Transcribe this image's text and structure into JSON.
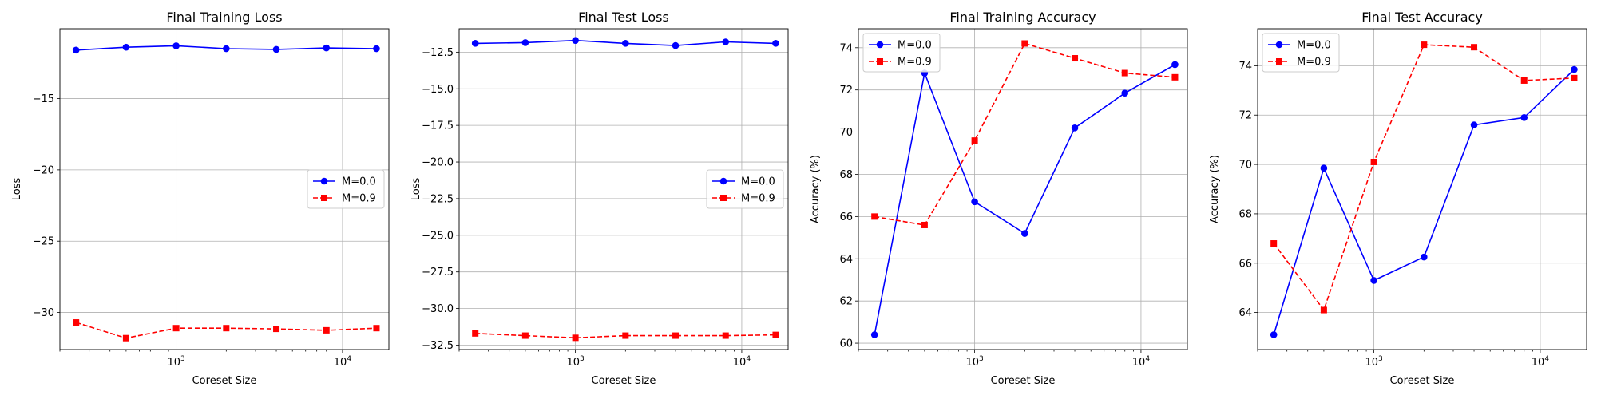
{
  "chart_data": [
    {
      "type": "line",
      "title": "Final Training Loss",
      "xlabel": "Coreset Size",
      "ylabel": "Loss",
      "xscale": "log",
      "xlim": [
        200,
        19000
      ],
      "ylim": [
        -32.6,
        -10.1
      ],
      "xticks": [
        1000,
        10000
      ],
      "yticks": [
        -15,
        -20,
        -25,
        -30
      ],
      "ytick_labels": [
        "−15",
        "−20",
        "−25",
        "−30"
      ],
      "grid": true,
      "legend_position": "center-right",
      "x": [
        250,
        500,
        1000,
        2000,
        4000,
        8000,
        16000
      ],
      "series": [
        {
          "name": "M=0.0",
          "color": "#0000ff",
          "marker": "circle",
          "linestyle": "solid",
          "values": [
            -11.6,
            -11.4,
            -11.3,
            -11.5,
            -11.55,
            -11.45,
            -11.5
          ]
        },
        {
          "name": "M=0.9",
          "color": "#ff0000",
          "marker": "square",
          "linestyle": "dashed",
          "values": [
            -30.7,
            -31.8,
            -31.1,
            -31.1,
            -31.15,
            -31.25,
            -31.1
          ]
        }
      ]
    },
    {
      "type": "line",
      "title": "Final Test Loss",
      "xlabel": "Coreset Size",
      "ylabel": "Loss",
      "xscale": "log",
      "xlim": [
        200,
        19000
      ],
      "ylim": [
        -32.8,
        -10.9
      ],
      "xticks": [
        1000,
        10000
      ],
      "yticks": [
        -12.5,
        -15.0,
        -17.5,
        -20.0,
        -22.5,
        -25.0,
        -27.5,
        -30.0,
        -32.5
      ],
      "ytick_labels": [
        "−12.5",
        "−15.0",
        "−17.5",
        "−20.0",
        "−22.5",
        "−25.0",
        "−27.5",
        "−30.0",
        "−32.5"
      ],
      "grid": true,
      "legend_position": "center-right",
      "x": [
        250,
        500,
        1000,
        2000,
        4000,
        8000,
        16000
      ],
      "series": [
        {
          "name": "M=0.0",
          "color": "#0000ff",
          "marker": "circle",
          "linestyle": "solid",
          "values": [
            -11.9,
            -11.85,
            -11.7,
            -11.9,
            -12.05,
            -11.8,
            -11.9
          ]
        },
        {
          "name": "M=0.9",
          "color": "#ff0000",
          "marker": "square",
          "linestyle": "dashed",
          "values": [
            -31.7,
            -31.85,
            -32.0,
            -31.85,
            -31.85,
            -31.85,
            -31.8
          ]
        }
      ]
    },
    {
      "type": "line",
      "title": "Final Training Accuracy",
      "xlabel": "Coreset Size",
      "ylabel": "Accuracy (%)",
      "xscale": "log",
      "xlim": [
        200,
        19000
      ],
      "ylim": [
        59.7,
        74.9
      ],
      "xticks": [
        1000,
        10000
      ],
      "yticks": [
        60,
        62,
        64,
        66,
        68,
        70,
        72,
        74
      ],
      "ytick_labels": [
        "60",
        "62",
        "64",
        "66",
        "68",
        "70",
        "72",
        "74"
      ],
      "grid": true,
      "legend_position": "top-left",
      "x": [
        250,
        500,
        1000,
        2000,
        4000,
        8000,
        16000
      ],
      "series": [
        {
          "name": "M=0.0",
          "color": "#0000ff",
          "marker": "circle",
          "linestyle": "solid",
          "values": [
            60.4,
            72.8,
            66.7,
            65.2,
            70.2,
            71.85,
            73.2
          ]
        },
        {
          "name": "M=0.9",
          "color": "#ff0000",
          "marker": "square",
          "linestyle": "dashed",
          "values": [
            66.0,
            65.6,
            69.6,
            74.2,
            73.5,
            72.8,
            72.6
          ]
        }
      ]
    },
    {
      "type": "line",
      "title": "Final Test Accuracy",
      "xlabel": "Coreset Size",
      "ylabel": "Accuracy (%)",
      "xscale": "log",
      "xlim": [
        200,
        19000
      ],
      "ylim": [
        62.5,
        75.5
      ],
      "xticks": [
        1000,
        10000
      ],
      "yticks": [
        64,
        66,
        68,
        70,
        72,
        74
      ],
      "ytick_labels": [
        "64",
        "66",
        "68",
        "70",
        "72",
        "74"
      ],
      "grid": true,
      "legend_position": "top-left",
      "x": [
        250,
        500,
        1000,
        2000,
        4000,
        8000,
        16000
      ],
      "series": [
        {
          "name": "M=0.0",
          "color": "#0000ff",
          "marker": "circle",
          "linestyle": "solid",
          "values": [
            63.1,
            69.85,
            65.3,
            66.25,
            71.6,
            71.9,
            73.85
          ]
        },
        {
          "name": "M=0.9",
          "color": "#ff0000",
          "marker": "square",
          "linestyle": "dashed",
          "values": [
            66.8,
            64.1,
            70.1,
            74.85,
            74.75,
            73.4,
            73.5
          ]
        }
      ]
    }
  ]
}
